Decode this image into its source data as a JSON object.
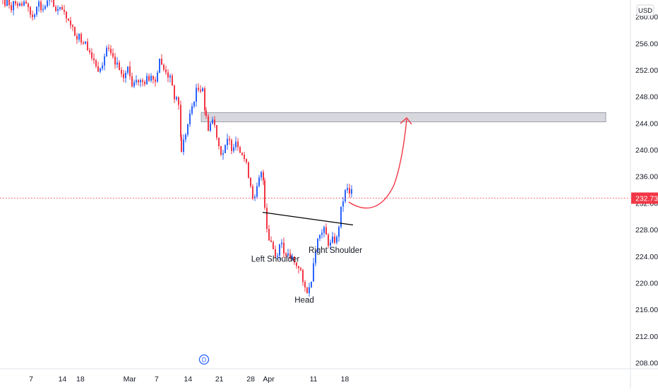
{
  "chart_data": {
    "type": "candlestick",
    "currency": "USD",
    "last_price": "232.73",
    "y_ticks": [
      "208.00",
      "212.00",
      "216.00",
      "220.00",
      "224.00",
      "228.00",
      "232.00",
      "236.00",
      "240.00",
      "244.00",
      "248.00",
      "252.00",
      "256.00",
      "260.00"
    ],
    "x_ticks": [
      {
        "label": "7",
        "day": 7
      },
      {
        "label": "14",
        "day": 14
      },
      {
        "label": "18",
        "day": 18
      },
      {
        "label": "Mar",
        "day": 29
      },
      {
        "label": "7",
        "day": 35
      },
      {
        "label": "14",
        "day": 42
      },
      {
        "label": "21",
        "day": 49
      },
      {
        "label": "28",
        "day": 56
      },
      {
        "label": "Apr",
        "day": 60
      },
      {
        "label": "11",
        "day": 70
      },
      {
        "label": "18",
        "day": 77
      }
    ],
    "resistance_zone": {
      "low": 244.2,
      "high": 245.6
    },
    "neckline": {
      "from_price": 230.6,
      "to_price": 228.7
    },
    "annotations": [
      {
        "text": "Left Shoulder",
        "price": 223.2
      },
      {
        "text": "Head",
        "price": 217.0
      },
      {
        "text": "Right Shoulder",
        "price": 224.5
      }
    ],
    "dividend_marker": "D",
    "colors": {
      "up": "#2962ff",
      "down": "#f23645",
      "projection": "#f23645",
      "zone": "#c9cbd3",
      "neckline": "#000000"
    }
  }
}
